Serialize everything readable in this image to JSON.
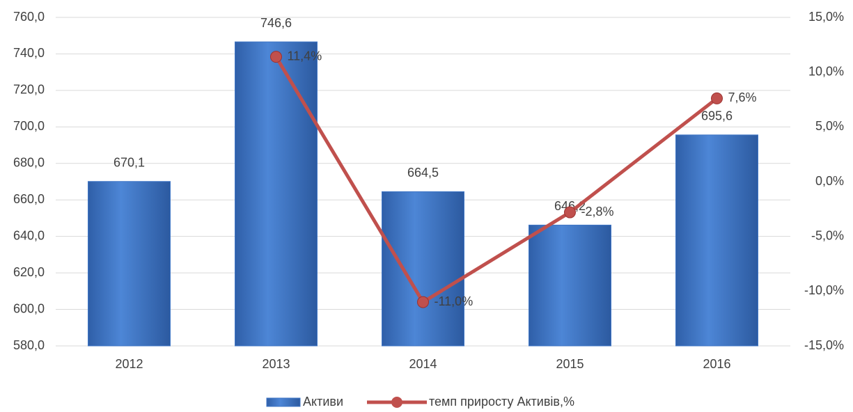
{
  "chart_data": {
    "type": "combo",
    "categories": [
      "2012",
      "2013",
      "2014",
      "2015",
      "2016"
    ],
    "series": [
      {
        "name": "Активи",
        "type": "bar",
        "color": "#3f76c6",
        "values": [
          670.1,
          746.6,
          664.5,
          646.2,
          695.6
        ],
        "value_labels": [
          "670,1",
          "746,6",
          "664,5",
          "646,2",
          "695,6"
        ]
      },
      {
        "name": "темп приросту Активів,%",
        "type": "line",
        "axis": "y2",
        "color": "#c0504d",
        "values": [
          null,
          11.4,
          -11.0,
          -2.8,
          7.6
        ],
        "value_labels": [
          null,
          "11,4%",
          "-11,0%",
          "-2,8%",
          "7,6%"
        ]
      }
    ],
    "ylim": [
      580,
      760
    ],
    "yticks": [
      {
        "value": 580,
        "label": "580,0"
      },
      {
        "value": 600,
        "label": "600,0"
      },
      {
        "value": 620,
        "label": "620,0"
      },
      {
        "value": 640,
        "label": "640,0"
      },
      {
        "value": 660,
        "label": "660,0"
      },
      {
        "value": 680,
        "label": "680,0"
      },
      {
        "value": 700,
        "label": "700,0"
      },
      {
        "value": 720,
        "label": "720,0"
      },
      {
        "value": 740,
        "label": "740,0"
      },
      {
        "value": 760,
        "label": "760,0"
      }
    ],
    "y2lim": [
      -15,
      15
    ],
    "y2ticks": [
      {
        "value": -15,
        "label": "-15,0%"
      },
      {
        "value": -10,
        "label": "-10,0%"
      },
      {
        "value": -5,
        "label": "-5,0%"
      },
      {
        "value": 0,
        "label": "0,0%"
      },
      {
        "value": 5,
        "label": "5,0%"
      },
      {
        "value": 10,
        "label": "10,0%"
      },
      {
        "value": 15,
        "label": "15,0%"
      }
    ],
    "grid": true,
    "legend": "bottom"
  }
}
